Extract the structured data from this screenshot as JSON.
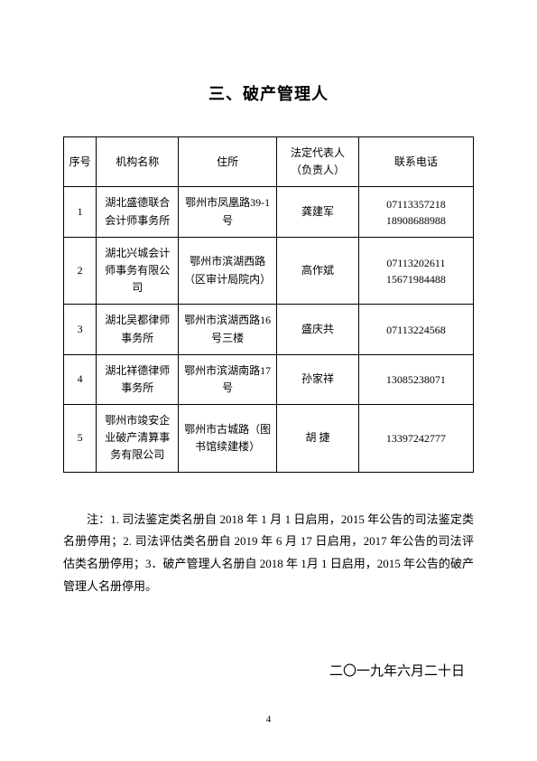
{
  "title": "三、破产管理人",
  "table": {
    "headers": {
      "seq": "序号",
      "org": "机构名称",
      "addr": "住所",
      "person": "法定代表人（负责人）",
      "phone": "联系电话"
    },
    "rows": [
      {
        "seq": "1",
        "org": "湖北盛德联合会计师事务所",
        "addr": "鄂州市凤凰路39-1 号",
        "person": "龚建军",
        "phone": "07113357218\n18908688988"
      },
      {
        "seq": "2",
        "org": "湖北兴城会计师事务有限公司",
        "addr": "鄂州市滨湖西路（区审计局院内）",
        "person": "高作斌",
        "phone": "07113202611\n15671984488"
      },
      {
        "seq": "3",
        "org": "湖北吴都律师事务所",
        "addr": "鄂州市滨湖西路16 号三楼",
        "person": "盛庆共",
        "phone": "07113224568"
      },
      {
        "seq": "4",
        "org": "湖北祥德律师事务所",
        "addr": "鄂州市滨湖南路17 号",
        "person": "孙家祥",
        "phone": "13085238071"
      },
      {
        "seq": "5",
        "org": "鄂州市竣安企业破产清算事务有限公司",
        "addr": "鄂州市古城路（图书馆续建楼）",
        "person": "胡 捷",
        "phone": "13397242777"
      }
    ]
  },
  "note": "注：1. 司法鉴定类名册自 2018 年 1 月 1 日启用，2015 年公告的司法鉴定类名册停用；2. 司法评估类名册自 2019 年 6 月 17 日启用，2017 年公告的司法评估类名册停用；3．破产管理人名册自 2018 年 1月 1 日启用，2015 年公告的破产管理人名册停用。",
  "date": "二〇一九年六月二十日",
  "pageNumber": "4"
}
